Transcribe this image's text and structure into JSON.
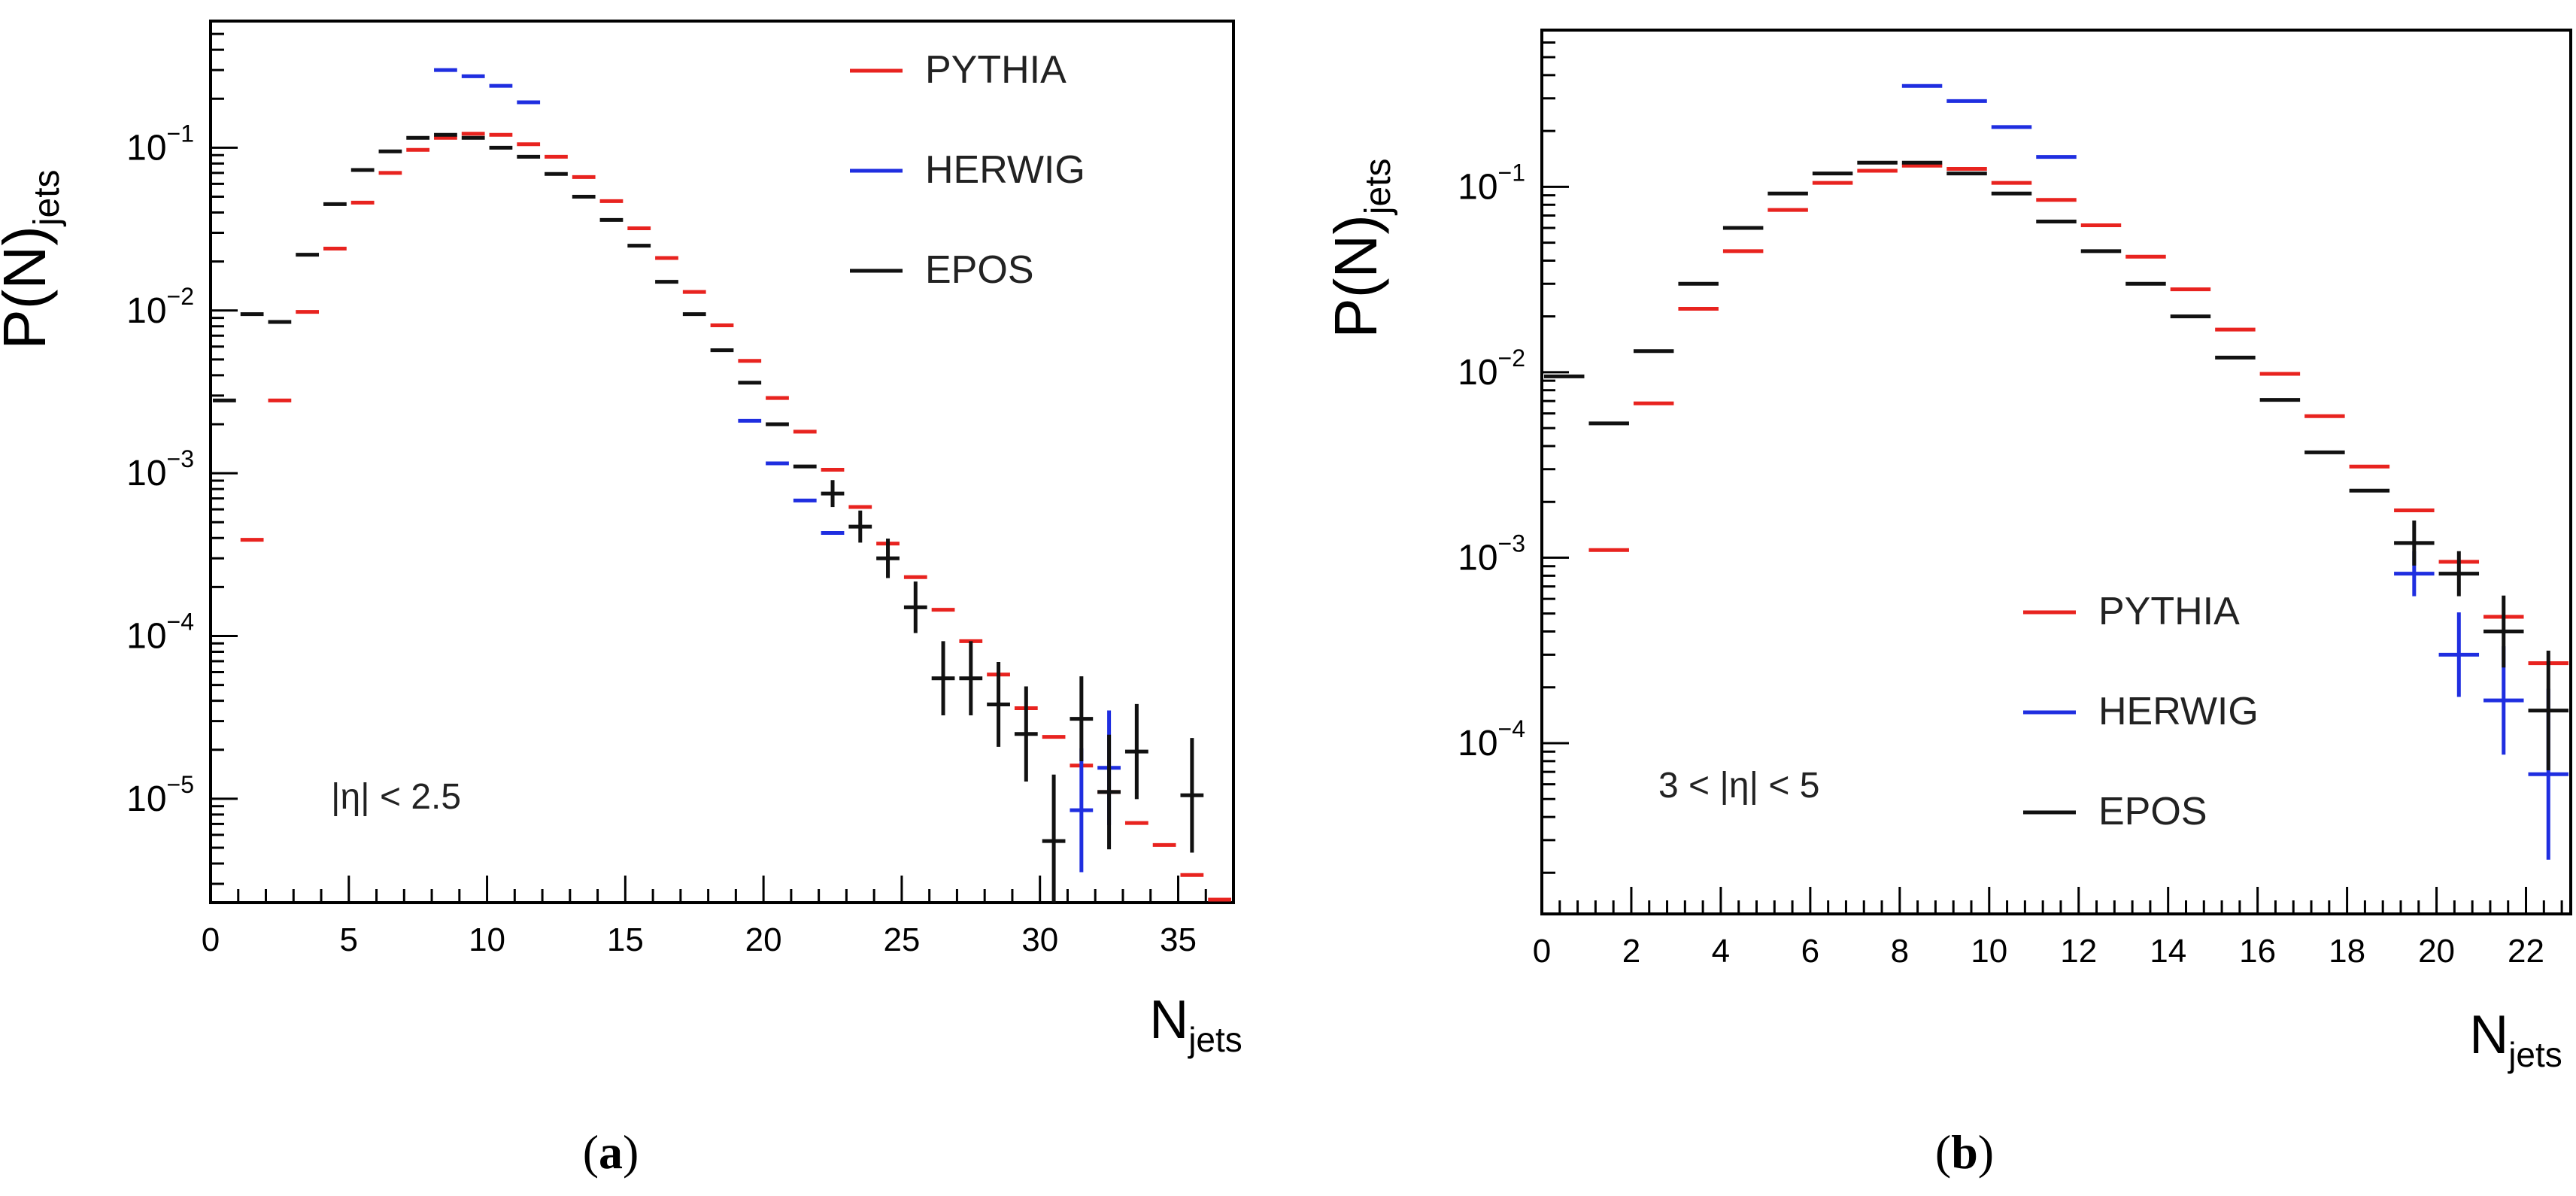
{
  "figure": {
    "captions": [
      {
        "open": "(",
        "letter": "a",
        "close": ")"
      },
      {
        "open": "(",
        "letter": "b",
        "close": ")"
      }
    ]
  },
  "chart_data": [
    {
      "type": "scatter",
      "subtype": "histogram-with-error-bars",
      "panel": "(a)",
      "title": "",
      "xlabel": "N",
      "xlabel_sub": "jets",
      "ylabel": "P(N)",
      "ylabel_sub": "jets",
      "yscale": "log",
      "xlim": [
        0,
        37
      ],
      "ylim": [
        2.3e-06,
        0.6
      ],
      "xticks": [
        0,
        5,
        10,
        15,
        20,
        25,
        30,
        35
      ],
      "ytick_labels": [
        {
          "value": 0.1,
          "base": "10",
          "exp": "−1"
        },
        {
          "value": 0.01,
          "base": "10",
          "exp": "−2"
        },
        {
          "value": 0.001,
          "base": "10",
          "exp": "−3"
        },
        {
          "value": 0.0001,
          "base": "10",
          "exp": "−4"
        },
        {
          "value": 1e-05,
          "base": "10",
          "exp": "−5"
        }
      ],
      "annotation": "|η| < 2.5",
      "legend_position": "top-right",
      "series": [
        {
          "name": "PYTHIA",
          "color": "#e8231f",
          "points": [
            [
              1,
              0.00039,
              0
            ],
            [
              2,
              0.0028,
              0
            ],
            [
              3,
              0.0098,
              0
            ],
            [
              4,
              0.024,
              0
            ],
            [
              5,
              0.046,
              0
            ],
            [
              6,
              0.07,
              0
            ],
            [
              7,
              0.097,
              0
            ],
            [
              8,
              0.115,
              0
            ],
            [
              9,
              0.122,
              0
            ],
            [
              10,
              0.12,
              0
            ],
            [
              11,
              0.105,
              0
            ],
            [
              12,
              0.088,
              0
            ],
            [
              13,
              0.066,
              0
            ],
            [
              14,
              0.047,
              0
            ],
            [
              15,
              0.032,
              0
            ],
            [
              16,
              0.021,
              0
            ],
            [
              17,
              0.013,
              0
            ],
            [
              18,
              0.0081,
              0
            ],
            [
              19,
              0.0049,
              0
            ],
            [
              20,
              0.0029,
              0
            ],
            [
              21,
              0.0018,
              0
            ],
            [
              22,
              0.00105,
              0
            ],
            [
              23,
              0.00062,
              0
            ],
            [
              24,
              0.00037,
              0
            ],
            [
              25,
              0.00023,
              0
            ],
            [
              26,
              0.000145,
              0
            ],
            [
              27,
              9.3e-05,
              0
            ],
            [
              28,
              5.8e-05,
              0
            ],
            [
              29,
              3.6e-05,
              0
            ],
            [
              30,
              2.4e-05,
              0
            ],
            [
              31,
              1.6e-05,
              0
            ],
            [
              32,
              1.1e-05,
              0
            ],
            [
              33,
              7.1e-06,
              0
            ],
            [
              34,
              5.2e-06,
              0
            ],
            [
              35,
              3.4e-06,
              0
            ],
            [
              36,
              2.4e-06,
              0
            ]
          ]
        },
        {
          "name": "HERWIG",
          "color": "#1f2ee0",
          "points": [
            [
              8,
              0.3,
              0
            ],
            [
              9,
              0.275,
              0
            ],
            [
              10,
              0.24,
              0
            ],
            [
              11,
              0.19,
              0
            ],
            [
              19,
              0.0021,
              0
            ],
            [
              20,
              0.00115,
              0
            ],
            [
              21,
              0.00068,
              0
            ],
            [
              22,
              0.00043,
              0
            ],
            [
              31,
              8.5e-06,
              0.55
            ],
            [
              32,
              1.55e-05,
              0.5
            ]
          ]
        },
        {
          "name": "EPOS",
          "color": "#111111",
          "points": [
            [
              0,
              0.0028,
              0
            ],
            [
              1,
              0.0095,
              0
            ],
            [
              2,
              0.0085,
              0
            ],
            [
              3,
              0.022,
              0
            ],
            [
              4,
              0.045,
              0
            ],
            [
              5,
              0.073,
              0
            ],
            [
              6,
              0.095,
              0
            ],
            [
              7,
              0.115,
              0
            ],
            [
              8,
              0.12,
              0
            ],
            [
              9,
              0.115,
              0
            ],
            [
              10,
              0.1,
              0
            ],
            [
              11,
              0.088,
              0
            ],
            [
              12,
              0.069,
              0
            ],
            [
              13,
              0.05,
              0
            ],
            [
              14,
              0.036,
              0
            ],
            [
              15,
              0.025,
              0
            ],
            [
              16,
              0.015,
              0
            ],
            [
              17,
              0.0095,
              0
            ],
            [
              18,
              0.0057,
              0
            ],
            [
              19,
              0.0036,
              0
            ],
            [
              20,
              0.002,
              0
            ],
            [
              21,
              0.0011,
              0
            ],
            [
              22,
              0.00075,
              0.1
            ],
            [
              23,
              0.00047,
              0.12
            ],
            [
              24,
              0.0003,
              0.15
            ],
            [
              25,
              0.00015,
              0.2
            ],
            [
              26,
              5.5e-05,
              0.3
            ],
            [
              27,
              5.5e-05,
              0.3
            ],
            [
              28,
              3.8e-05,
              0.35
            ],
            [
              29,
              2.5e-05,
              0.4
            ],
            [
              30,
              5.5e-06,
              0.6
            ],
            [
              31,
              3.1e-05,
              0.35
            ],
            [
              32,
              1.1e-05,
              0.5
            ],
            [
              33,
              1.95e-05,
              0.4
            ],
            [
              35,
              1.05e-05,
              0.5
            ]
          ]
        }
      ]
    },
    {
      "type": "scatter",
      "subtype": "histogram-with-error-bars",
      "panel": "(b)",
      "title": "",
      "xlabel": "N",
      "xlabel_sub": "jets",
      "ylabel": "P(N)",
      "ylabel_sub": "jets",
      "yscale": "log",
      "xlim": [
        0,
        23
      ],
      "ylim": [
        1.2e-05,
        0.7
      ],
      "xticks": [
        0,
        2,
        4,
        6,
        8,
        10,
        12,
        14,
        16,
        18,
        20,
        22
      ],
      "ytick_labels": [
        {
          "value": 0.1,
          "base": "10",
          "exp": "−1"
        },
        {
          "value": 0.01,
          "base": "10",
          "exp": "−2"
        },
        {
          "value": 0.001,
          "base": "10",
          "exp": "−3"
        },
        {
          "value": 0.0001,
          "base": "10",
          "exp": "−4"
        }
      ],
      "annotation": "3 < |η| < 5",
      "legend_position": "bottom-right",
      "series": [
        {
          "name": "PYTHIA",
          "color": "#e8231f",
          "points": [
            [
              1,
              0.0011,
              0
            ],
            [
              2,
              0.0068,
              0
            ],
            [
              3,
              0.022,
              0
            ],
            [
              4,
              0.045,
              0
            ],
            [
              5,
              0.075,
              0
            ],
            [
              6,
              0.105,
              0
            ],
            [
              7,
              0.122,
              0
            ],
            [
              8,
              0.13,
              0
            ],
            [
              9,
              0.125,
              0
            ],
            [
              10,
              0.105,
              0
            ],
            [
              11,
              0.085,
              0
            ],
            [
              12,
              0.062,
              0
            ],
            [
              13,
              0.042,
              0
            ],
            [
              14,
              0.028,
              0
            ],
            [
              15,
              0.017,
              0
            ],
            [
              16,
              0.0098,
              0
            ],
            [
              17,
              0.0058,
              0
            ],
            [
              18,
              0.0031,
              0
            ],
            [
              19,
              0.0018,
              0
            ],
            [
              20,
              0.00095,
              0
            ],
            [
              21,
              0.00048,
              0
            ],
            [
              22,
              0.00027,
              0
            ]
          ]
        },
        {
          "name": "HERWIG",
          "color": "#1f2ee0",
          "points": [
            [
              8,
              0.35,
              0
            ],
            [
              9,
              0.29,
              0
            ],
            [
              10,
              0.21,
              0
            ],
            [
              11,
              0.145,
              0
            ],
            [
              19,
              0.00082,
              0.15
            ],
            [
              20,
              0.0003,
              0.3
            ],
            [
              21,
              0.00017,
              0.4
            ],
            [
              22,
              6.8e-05,
              0.7
            ]
          ]
        },
        {
          "name": "EPOS",
          "color": "#111111",
          "points": [
            [
              0,
              0.0095,
              0
            ],
            [
              1,
              0.0053,
              0
            ],
            [
              2,
              0.013,
              0
            ],
            [
              3,
              0.03,
              0
            ],
            [
              4,
              0.06,
              0
            ],
            [
              5,
              0.092,
              0
            ],
            [
              6,
              0.118,
              0
            ],
            [
              7,
              0.135,
              0
            ],
            [
              8,
              0.135,
              0
            ],
            [
              9,
              0.118,
              0
            ],
            [
              10,
              0.092,
              0
            ],
            [
              11,
              0.065,
              0
            ],
            [
              12,
              0.045,
              0
            ],
            [
              13,
              0.03,
              0
            ],
            [
              14,
              0.02,
              0
            ],
            [
              15,
              0.012,
              0
            ],
            [
              16,
              0.0071,
              0
            ],
            [
              17,
              0.0037,
              0
            ],
            [
              18,
              0.0023,
              0
            ],
            [
              19,
              0.0012,
              0.15
            ],
            [
              20,
              0.00082,
              0.15
            ],
            [
              21,
              0.0004,
              0.25
            ],
            [
              22,
              0.00015,
              0.45
            ]
          ]
        }
      ]
    }
  ]
}
